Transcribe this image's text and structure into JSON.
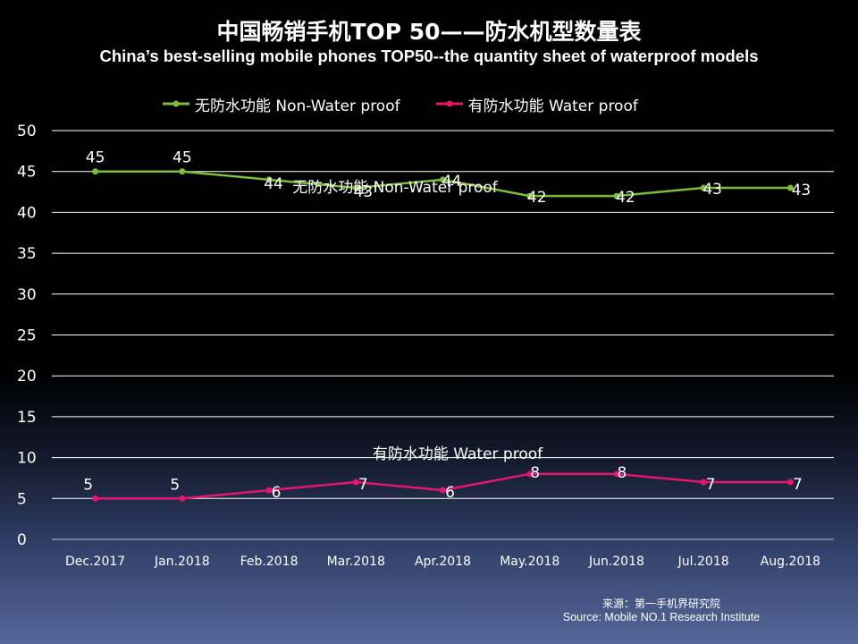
{
  "title_cn": "中国畅销手机TOP 50——防水机型数量表",
  "title_en": "China’s best-selling mobile phones TOP50--the quantity sheet of waterproof models",
  "source_cn": "来源：第一手机界研究院",
  "source_en": "Source: Mobile NO.1 Research Institute",
  "chart_data": {
    "type": "line",
    "title": "中国畅销手机TOP 50——防水机型数量表",
    "subtitle": "China’s best-selling mobile phones TOP50--the quantity sheet of waterproof models",
    "categories": [
      "Dec.2017",
      "Jan.2018",
      "Feb.2018",
      "Mar.2018",
      "Apr.2018",
      "May.2018",
      "Jun.2018",
      "Jul.2018",
      "Aug.2018"
    ],
    "series": [
      {
        "name": "无防水功能  Non-Water proof",
        "color": "#7cbd3c",
        "values": [
          45,
          45,
          44,
          43,
          44,
          42,
          42,
          43,
          43
        ]
      },
      {
        "name": "有防水功能  Water proof",
        "color": "#e4166e",
        "values": [
          5,
          5,
          6,
          7,
          6,
          8,
          8,
          7,
          7
        ]
      }
    ],
    "yticks": [
      "0",
      "5",
      "10",
      "15",
      "20",
      "25",
      "30",
      "35",
      "40",
      "45",
      "50"
    ],
    "ylim": [
      0,
      50
    ],
    "grid": true,
    "legend": "top",
    "xlabel": "",
    "ylabel": ""
  }
}
